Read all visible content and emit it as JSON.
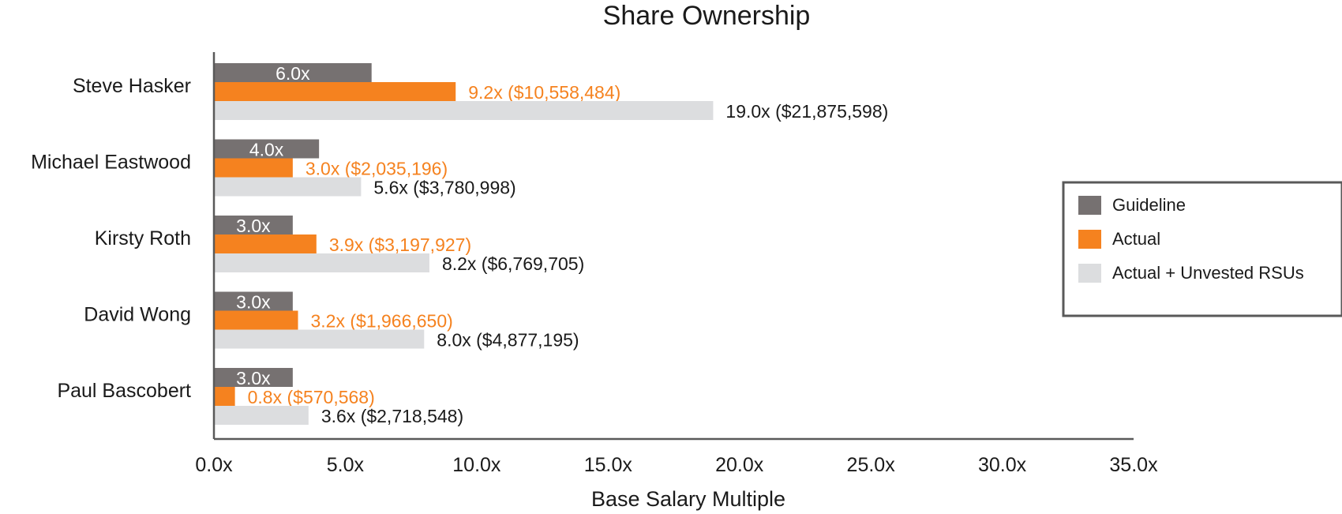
{
  "chart_data": {
    "type": "bar",
    "orientation": "horizontal",
    "title": "Share Ownership",
    "xlabel": "Base Salary Multiple",
    "ylabel": "",
    "xlim": [
      0,
      35
    ],
    "x_ticks": [
      "0.0x",
      "5.0x",
      "10.0x",
      "15.0x",
      "20.0x",
      "25.0x",
      "30.0x",
      "35.0x"
    ],
    "categories": [
      "Steve Hasker",
      "Michael Eastwood",
      "Kirsty Roth",
      "David Wong",
      "Paul Bascobert"
    ],
    "series": [
      {
        "name": "Guideline",
        "color": "#767171",
        "values": [
          6.0,
          4.0,
          3.0,
          3.0,
          3.0
        ],
        "labels": [
          "6.0x",
          "4.0x",
          "3.0x",
          "3.0x",
          "3.0x"
        ]
      },
      {
        "name": "Actual",
        "color": "#f5821f",
        "values": [
          9.2,
          3.0,
          3.9,
          3.2,
          0.8
        ],
        "labels": [
          "9.2x ($10,558,484)",
          "3.0x ($2,035,196)",
          "3.9x ($3,197,927)",
          "3.2x ($1,966,650)",
          "0.8x ($570,568)"
        ]
      },
      {
        "name": "Actual + Unvested RSUs",
        "color": "#dcdddf",
        "values": [
          19.0,
          5.6,
          8.2,
          8.0,
          3.6
        ],
        "labels": [
          "19.0x ($21,875,598)",
          "5.6x ($3,780,998)",
          "8.2x ($6,769,705)",
          "8.0x ($4,877,195)",
          "3.6x ($2,718,548)"
        ]
      }
    ],
    "legend_position": "right",
    "grid": false
  }
}
